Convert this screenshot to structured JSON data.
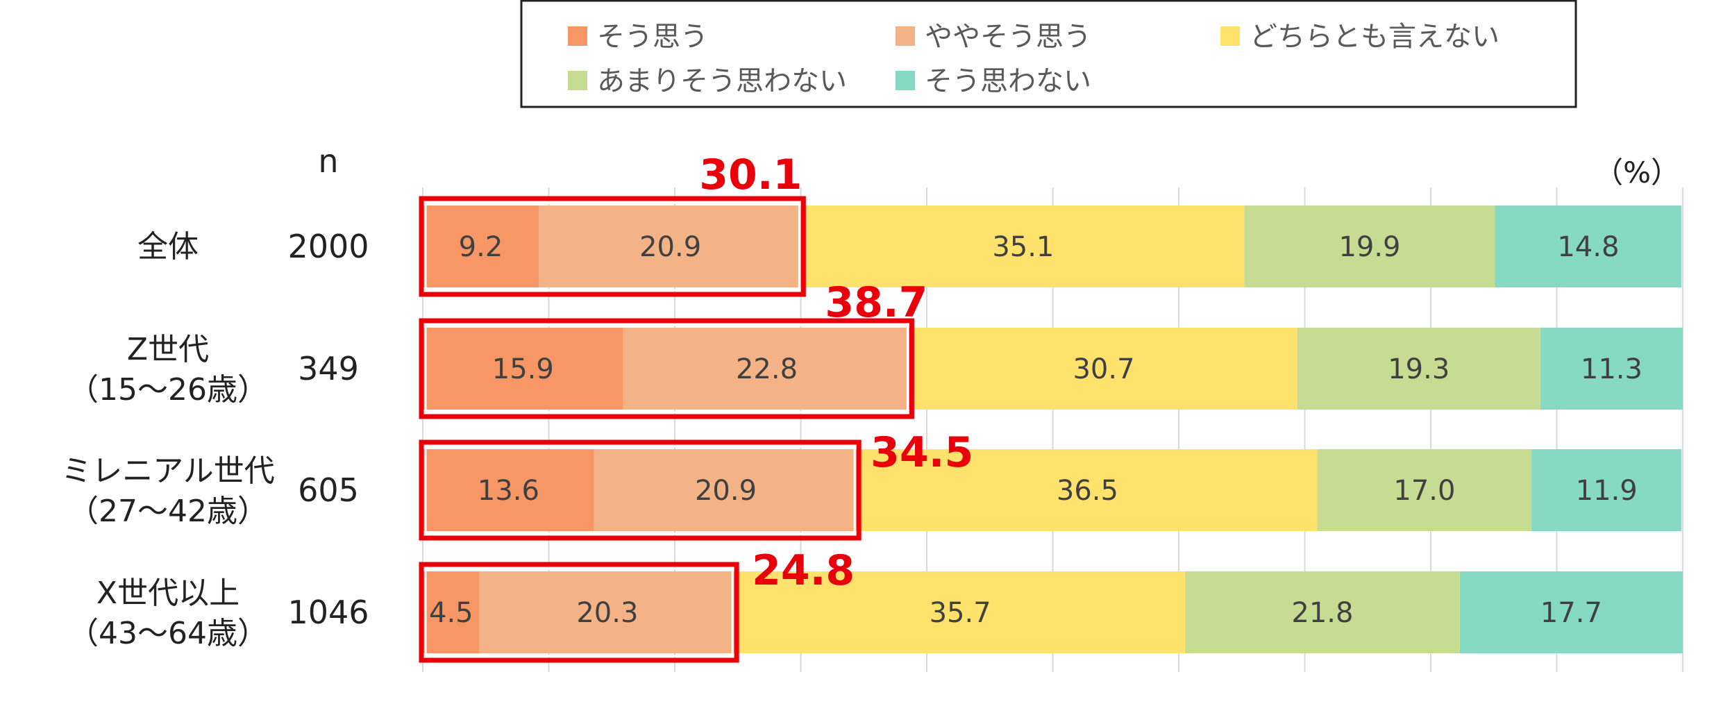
{
  "chart_data": {
    "type": "bar",
    "orientation": "horizontal",
    "stacked": true,
    "n_header": "n",
    "unit": "（%）",
    "xlim": [
      0,
      100
    ],
    "grid": true,
    "legend_position": "top",
    "categories": [
      {
        "label": [
          "全体"
        ],
        "n": "2000"
      },
      {
        "label": [
          "Z世代",
          "（15～26歳）"
        ],
        "n": "349"
      },
      {
        "label": [
          "ミレニアル世代",
          "（27～42歳）"
        ],
        "n": "605"
      },
      {
        "label": [
          "X世代以上",
          "（43～64歳）"
        ],
        "n": "1046"
      }
    ],
    "series": [
      {
        "name": "そう思う",
        "color": "#f79765",
        "values": [
          9.2,
          15.9,
          13.6,
          4.5
        ]
      },
      {
        "name": "ややそう思う",
        "color": "#f4b287",
        "values": [
          20.9,
          22.8,
          20.9,
          20.3
        ]
      },
      {
        "name": "どちらとも言えない",
        "color": "#fee26b",
        "values": [
          35.1,
          30.7,
          36.5,
          35.7
        ]
      },
      {
        "name": "あまりそう思わない",
        "color": "#c6dc92",
        "values": [
          19.9,
          19.3,
          17.0,
          21.8
        ]
      },
      {
        "name": "そう思わない",
        "color": "#86d9c3",
        "values": [
          14.8,
          11.3,
          11.9,
          17.7
        ]
      }
    ],
    "value_labels": [
      [
        "9.2",
        "20.9",
        "35.1",
        "19.9",
        "14.8"
      ],
      [
        "15.9",
        "22.8",
        "30.7",
        "19.3",
        "11.3"
      ],
      [
        "13.6",
        "20.9",
        "36.5",
        "17.0",
        "11.9"
      ],
      [
        "4.5",
        "20.3",
        "35.7",
        "21.8",
        "17.7"
      ]
    ],
    "highlight_totals": [
      "30.1",
      "38.7",
      "34.5",
      "24.8"
    ],
    "highlight_color": "#e8000b"
  }
}
